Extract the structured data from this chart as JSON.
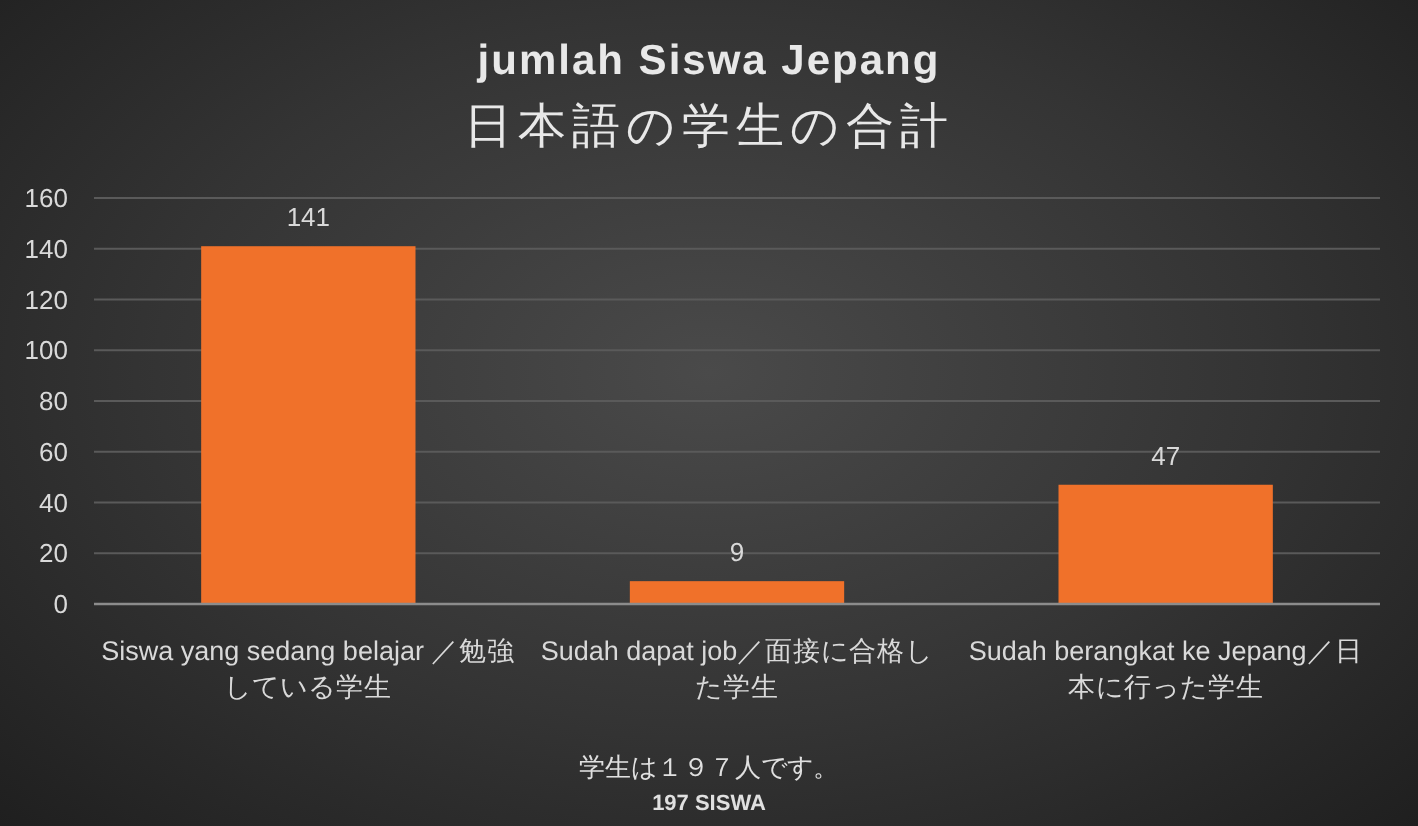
{
  "chart_data": {
    "type": "bar",
    "title": "jumlah Siswa Jepang",
    "subtitle": "日本語の学生の合計",
    "categories": [
      "Siswa yang sedang belajar ／勉強している学生",
      "Sudah dapat job／面接に合格した学生",
      "Sudah berangkat ke Jepang／日本に行った学生"
    ],
    "values": [
      141,
      9,
      47
    ],
    "color": "#f0712a",
    "ylim": [
      0,
      160
    ],
    "yticks": [
      0,
      20,
      40,
      60,
      80,
      100,
      120,
      140,
      160
    ],
    "grid": "y",
    "data_labels": true,
    "annotations": [
      "学生は１９７人です。",
      "197 SISWA"
    ]
  }
}
